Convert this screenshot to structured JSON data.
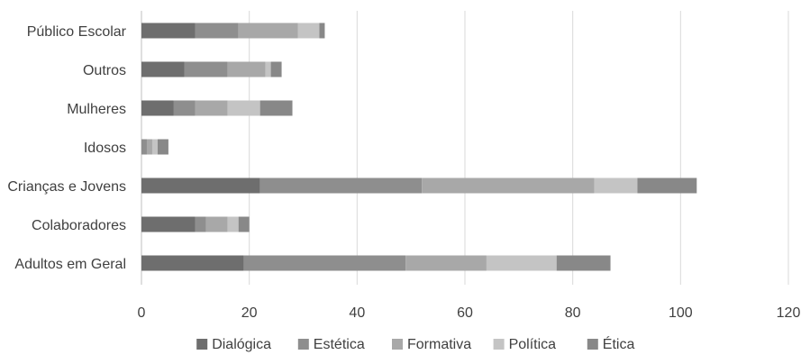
{
  "chart_data": {
    "type": "bar",
    "orientation": "horizontal",
    "stacked": true,
    "categories": [
      "Público Escolar",
      "Outros",
      "Mulheres",
      "Idosos",
      "Crianças e Jovens",
      "Colaboradores",
      "Adultos em Geral"
    ],
    "series": [
      {
        "name": "Dialógica",
        "color": "#6e6e6e",
        "values": [
          10,
          8,
          6,
          0,
          22,
          10,
          19
        ]
      },
      {
        "name": "Estética",
        "color": "#8e8e8e",
        "values": [
          8,
          8,
          4,
          1,
          30,
          2,
          30
        ]
      },
      {
        "name": "Formativa",
        "color": "#a8a8a8",
        "values": [
          11,
          7,
          6,
          1,
          32,
          4,
          15
        ]
      },
      {
        "name": "Política",
        "color": "#c4c4c4",
        "values": [
          4,
          1,
          6,
          1,
          8,
          2,
          13
        ]
      },
      {
        "name": "Ética",
        "color": "#888888",
        "values": [
          1,
          2,
          6,
          2,
          11,
          2,
          10
        ]
      }
    ],
    "xlim": [
      0,
      120
    ],
    "xticks": [
      0,
      20,
      40,
      60,
      80,
      100,
      120
    ],
    "title": "",
    "xlabel": "",
    "ylabel": "",
    "grid": "vertical",
    "legend_position": "bottom"
  }
}
